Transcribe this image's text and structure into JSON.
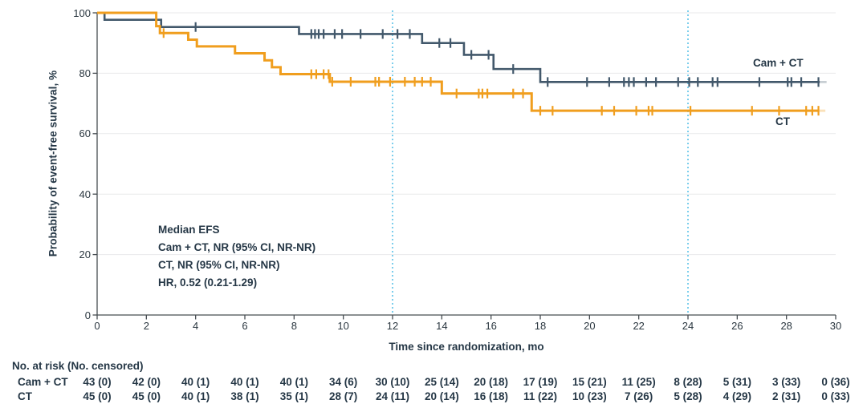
{
  "chart_data": {
    "type": "line",
    "subtype": "kaplan-meier-step",
    "xlabel": "Time since randomization, mo",
    "ylabel": "Probability of event-free survival, %",
    "xlim": [
      0,
      30
    ],
    "ylim": [
      0,
      100
    ],
    "x_ticks": [
      0,
      2,
      4,
      6,
      8,
      10,
      12,
      14,
      16,
      18,
      20,
      22,
      24,
      26,
      28,
      30
    ],
    "y_ticks": [
      0,
      20,
      40,
      60,
      80,
      100
    ],
    "grid": "horizontal-light",
    "reference_lines_x": [
      12,
      24
    ],
    "annotations": [
      "Median EFS",
      "Cam + CT, NR (95% CI, NR-NR)",
      "CT, NR (95% CI, NR-NR)",
      "HR, 0.52 (0.21-1.29)"
    ],
    "series": [
      {
        "name": "Cam + CT",
        "color": "#42586b",
        "start": [
          0,
          100
        ],
        "steps": [
          [
            0.3,
            97.7
          ],
          [
            2.6,
            95.3
          ],
          [
            8.2,
            93.0
          ],
          [
            13.2,
            90.0
          ],
          [
            14.9,
            86.1
          ],
          [
            16.1,
            81.4
          ],
          [
            18.0,
            77.1
          ]
        ],
        "end_x": 29.35,
        "final_value": 77.1,
        "censor_marks": [
          [
            4.0,
            95.3
          ],
          [
            8.7,
            93.0
          ],
          [
            8.85,
            93.0
          ],
          [
            9.0,
            93.0
          ],
          [
            9.2,
            93.0
          ],
          [
            9.65,
            93.0
          ],
          [
            9.95,
            93.0
          ],
          [
            10.7,
            93.0
          ],
          [
            11.6,
            93.0
          ],
          [
            12.2,
            93.0
          ],
          [
            12.7,
            93.0
          ],
          [
            13.9,
            90.0
          ],
          [
            14.35,
            90.0
          ],
          [
            15.2,
            86.1
          ],
          [
            15.9,
            86.1
          ],
          [
            16.9,
            81.4
          ],
          [
            18.3,
            77.1
          ],
          [
            19.9,
            77.1
          ],
          [
            20.8,
            77.1
          ],
          [
            21.4,
            77.1
          ],
          [
            21.6,
            77.1
          ],
          [
            21.8,
            77.1
          ],
          [
            22.3,
            77.1
          ],
          [
            22.7,
            77.1
          ],
          [
            23.6,
            77.1
          ],
          [
            24.05,
            77.1
          ],
          [
            24.4,
            77.1
          ],
          [
            25.0,
            77.1
          ],
          [
            25.2,
            77.1
          ],
          [
            26.9,
            77.1
          ],
          [
            28.05,
            77.1
          ],
          [
            28.2,
            77.1
          ],
          [
            28.6,
            77.1
          ],
          [
            29.3,
            77.1
          ]
        ]
      },
      {
        "name": "CT",
        "color": "#f09e1e",
        "start": [
          0,
          100
        ],
        "steps": [
          [
            2.4,
            95.6
          ],
          [
            2.55,
            93.3
          ],
          [
            3.7,
            91.1
          ],
          [
            4.05,
            88.9
          ],
          [
            5.6,
            86.6
          ],
          [
            6.8,
            84.3
          ],
          [
            7.1,
            82.0
          ],
          [
            7.45,
            79.7
          ],
          [
            9.45,
            77.2
          ],
          [
            14.0,
            73.3
          ],
          [
            17.65,
            67.6
          ]
        ],
        "end_x": 29.3,
        "final_value": 67.6,
        "censor_marks": [
          [
            2.7,
            93.3
          ],
          [
            8.7,
            79.7
          ],
          [
            8.9,
            79.7
          ],
          [
            9.2,
            79.7
          ],
          [
            9.4,
            79.7
          ],
          [
            9.55,
            77.2
          ],
          [
            10.3,
            77.2
          ],
          [
            11.3,
            77.2
          ],
          [
            11.45,
            77.2
          ],
          [
            11.9,
            77.2
          ],
          [
            12.5,
            77.2
          ],
          [
            12.9,
            77.2
          ],
          [
            13.2,
            77.2
          ],
          [
            13.55,
            77.2
          ],
          [
            14.6,
            73.3
          ],
          [
            15.5,
            73.3
          ],
          [
            15.65,
            73.3
          ],
          [
            15.85,
            73.3
          ],
          [
            16.9,
            73.3
          ],
          [
            17.3,
            73.3
          ],
          [
            18.0,
            67.6
          ],
          [
            18.5,
            67.6
          ],
          [
            20.5,
            67.6
          ],
          [
            21.0,
            67.6
          ],
          [
            21.9,
            67.6
          ],
          [
            22.4,
            67.6
          ],
          [
            22.55,
            67.6
          ],
          [
            24.1,
            67.6
          ],
          [
            26.6,
            67.6
          ],
          [
            27.7,
            67.6
          ],
          [
            28.8,
            67.6
          ],
          [
            29.05,
            67.6
          ],
          [
            29.3,
            67.6
          ]
        ]
      }
    ],
    "colors": {
      "reference_line": "#5bc2e8",
      "gridline": "#e9eaeb",
      "axis": "#474d52",
      "text": "#253746"
    }
  },
  "risk_table": {
    "header": "No. at risk (No. censored)",
    "time_points": [
      0,
      2,
      4,
      6,
      8,
      10,
      12,
      14,
      16,
      18,
      20,
      22,
      24,
      26,
      28,
      30
    ],
    "rows": [
      {
        "label": "Cam + CT",
        "values": [
          "43 (0)",
          "42 (0)",
          "40 (1)",
          "40 (1)",
          "40 (1)",
          "34 (6)",
          "30 (10)",
          "25 (14)",
          "20 (18)",
          "17 (19)",
          "15 (21)",
          "11 (25)",
          "8 (28)",
          "5 (31)",
          "3 (33)",
          "0 (36)"
        ]
      },
      {
        "label": "CT",
        "values": [
          "45 (0)",
          "45 (0)",
          "40 (1)",
          "38 (1)",
          "35 (1)",
          "28 (7)",
          "24 (11)",
          "20 (14)",
          "16 (18)",
          "11 (22)",
          "10 (23)",
          "7 (26)",
          "5 (28)",
          "4 (29)",
          "2 (31)",
          "0 (33)"
        ]
      }
    ]
  }
}
